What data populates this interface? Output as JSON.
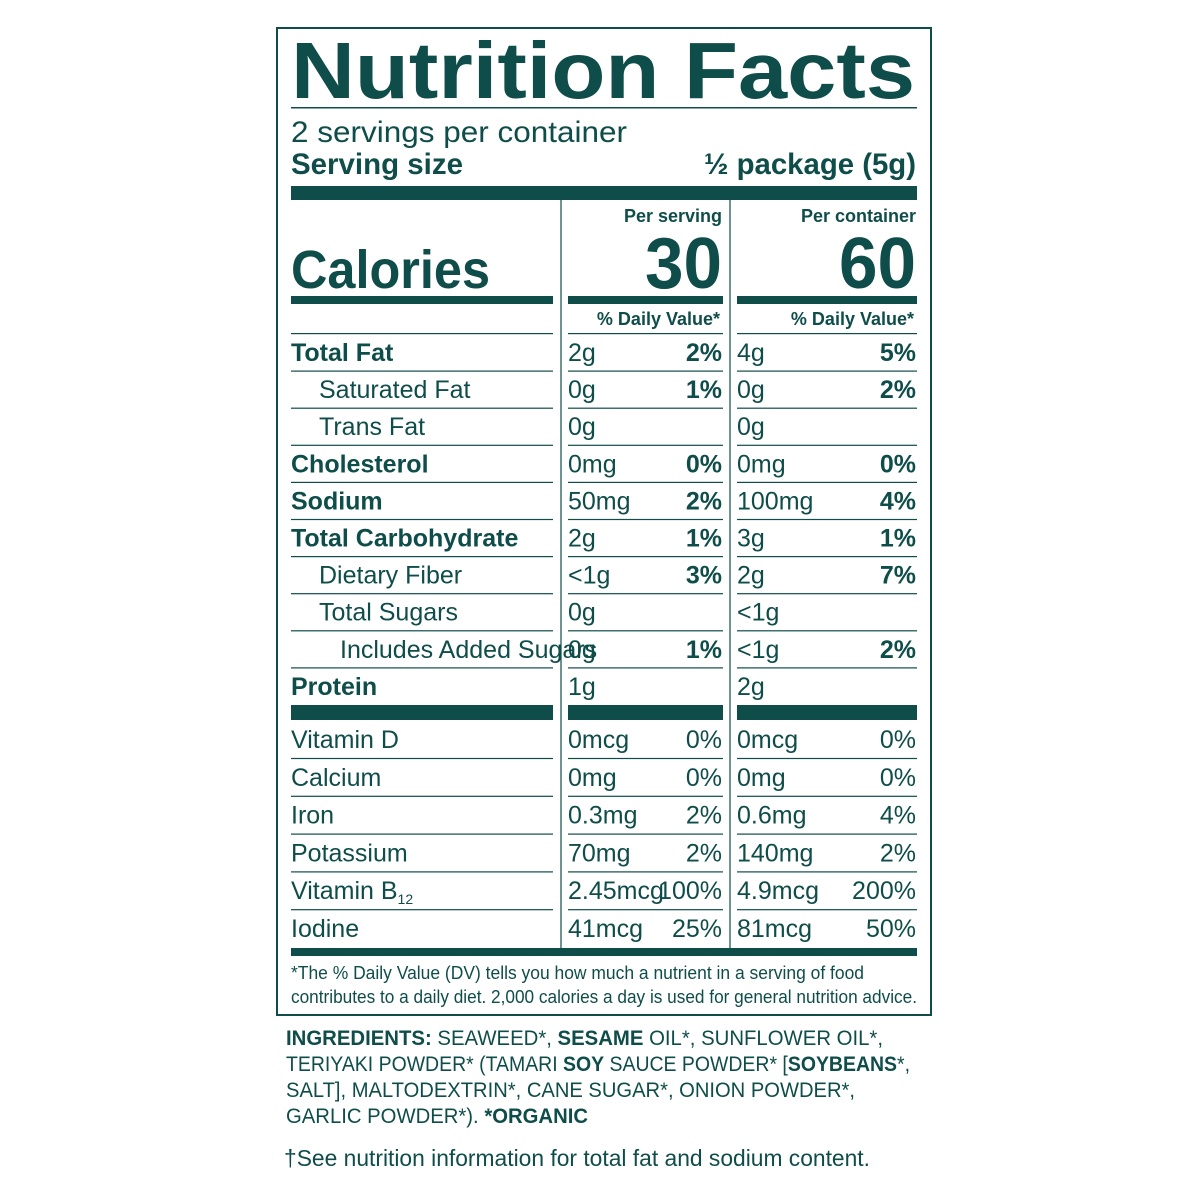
{
  "title": "Nutrition Facts",
  "servings": "2 servings per container",
  "serving_size": {
    "label": "Serving size",
    "value": "½ package (5g)"
  },
  "calories_label": "Calories",
  "columns": [
    {
      "heading": "Per serving",
      "calories": "30",
      "dv_heading": "% Daily Value*"
    },
    {
      "heading": "Per container",
      "calories": "60",
      "dv_heading": "% Daily Value*"
    }
  ],
  "nutrients": [
    {
      "name": "Total Fat",
      "bold": true,
      "indent": 0,
      "values": [
        {
          "amount": "2g",
          "dv": "2%"
        },
        {
          "amount": "4g",
          "dv": "5%"
        }
      ]
    },
    {
      "name": "Saturated Fat",
      "bold": false,
      "indent": 1,
      "values": [
        {
          "amount": "0g",
          "dv": "1%"
        },
        {
          "amount": "0g",
          "dv": "2%"
        }
      ]
    },
    {
      "name": "Trans Fat",
      "bold": false,
      "indent": 1,
      "values": [
        {
          "amount": "0g"
        },
        {
          "amount": "0g"
        }
      ]
    },
    {
      "name": "Cholesterol",
      "bold": true,
      "indent": 0,
      "values": [
        {
          "amount": "0mg",
          "dv": "0%"
        },
        {
          "amount": "0mg",
          "dv": "0%"
        }
      ]
    },
    {
      "name": "Sodium",
      "bold": true,
      "indent": 0,
      "values": [
        {
          "amount": "50mg",
          "dv": "2%"
        },
        {
          "amount": "100mg",
          "dv": "4%"
        }
      ]
    },
    {
      "name": "Total Carbohydrate",
      "bold": true,
      "indent": 0,
      "values": [
        {
          "amount": "2g",
          "dv": "1%"
        },
        {
          "amount": "3g",
          "dv": "1%"
        }
      ]
    },
    {
      "name": "Dietary Fiber",
      "bold": false,
      "indent": 1,
      "values": [
        {
          "amount": "<1g",
          "dv": "3%"
        },
        {
          "amount": "2g",
          "dv": "7%"
        }
      ]
    },
    {
      "name": "Total Sugars",
      "bold": false,
      "indent": 1,
      "values": [
        {
          "amount": "0g"
        },
        {
          "amount": "<1g"
        }
      ]
    },
    {
      "name": "Includes Added Sugars",
      "bold": false,
      "indent": 2,
      "values": [
        {
          "amount": "0g",
          "dv": "1%"
        },
        {
          "amount": "<1g",
          "dv": "2%"
        }
      ]
    },
    {
      "name": "Protein",
      "bold": true,
      "indent": 0,
      "values": [
        {
          "amount": "1g"
        },
        {
          "amount": "2g"
        }
      ]
    }
  ],
  "vitamins": [
    {
      "name": "Vitamin D",
      "values": [
        {
          "amount": "0mcg",
          "dv": "0%"
        },
        {
          "amount": "0mcg",
          "dv": "0%"
        }
      ]
    },
    {
      "name": "Calcium",
      "values": [
        {
          "amount": "0mg",
          "dv": "0%"
        },
        {
          "amount": "0mg",
          "dv": "0%"
        }
      ]
    },
    {
      "name": "Iron",
      "values": [
        {
          "amount": "0.3mg",
          "dv": "2%"
        },
        {
          "amount": "0.6mg",
          "dv": "4%"
        }
      ]
    },
    {
      "name": "Potassium",
      "values": [
        {
          "amount": "70mg",
          "dv": "2%"
        },
        {
          "amount": "140mg",
          "dv": "2%"
        }
      ]
    },
    {
      "name": "Vitamin B",
      "subscript": "12",
      "values": [
        {
          "amount": "2.45mcg",
          "dv": "100%"
        },
        {
          "amount": "4.9mcg",
          "dv": "200%"
        }
      ]
    },
    {
      "name": "Iodine",
      "values": [
        {
          "amount": "41mcg",
          "dv": "25%"
        },
        {
          "amount": "81mcg",
          "dv": "50%"
        }
      ]
    }
  ],
  "footnote": [
    "*The % Daily Value (DV) tells you how much a nutrient in a serving of food",
    "contributes to a daily diet. 2,000 calories a day is used for general nutrition advice."
  ],
  "ingredients": [
    [
      {
        "text": "INGREDIENTS:",
        "bold": true
      },
      {
        "text": " SEAWEED*, ",
        "bold": false
      },
      {
        "text": "SESAME",
        "bold": true
      },
      {
        "text": " OIL*, SUNFLOWER OIL*,",
        "bold": false
      }
    ],
    [
      {
        "text": "TERIYAKI POWDER* (TAMARI ",
        "bold": false
      },
      {
        "text": "SOY",
        "bold": true
      },
      {
        "text": " SAUCE POWDER* [",
        "bold": false
      },
      {
        "text": "SOYBEANS",
        "bold": true
      },
      {
        "text": "*,",
        "bold": false
      }
    ],
    [
      {
        "text": "SALT], MALTODEXTRIN*, CANE SUGAR*, ONION POWDER*,",
        "bold": false
      }
    ],
    [
      {
        "text": "GARLIC POWDER*). ",
        "bold": false
      },
      {
        "text": "*ORGANIC",
        "bold": true
      }
    ]
  ],
  "note": "†See nutrition information for total fat and sodium content."
}
